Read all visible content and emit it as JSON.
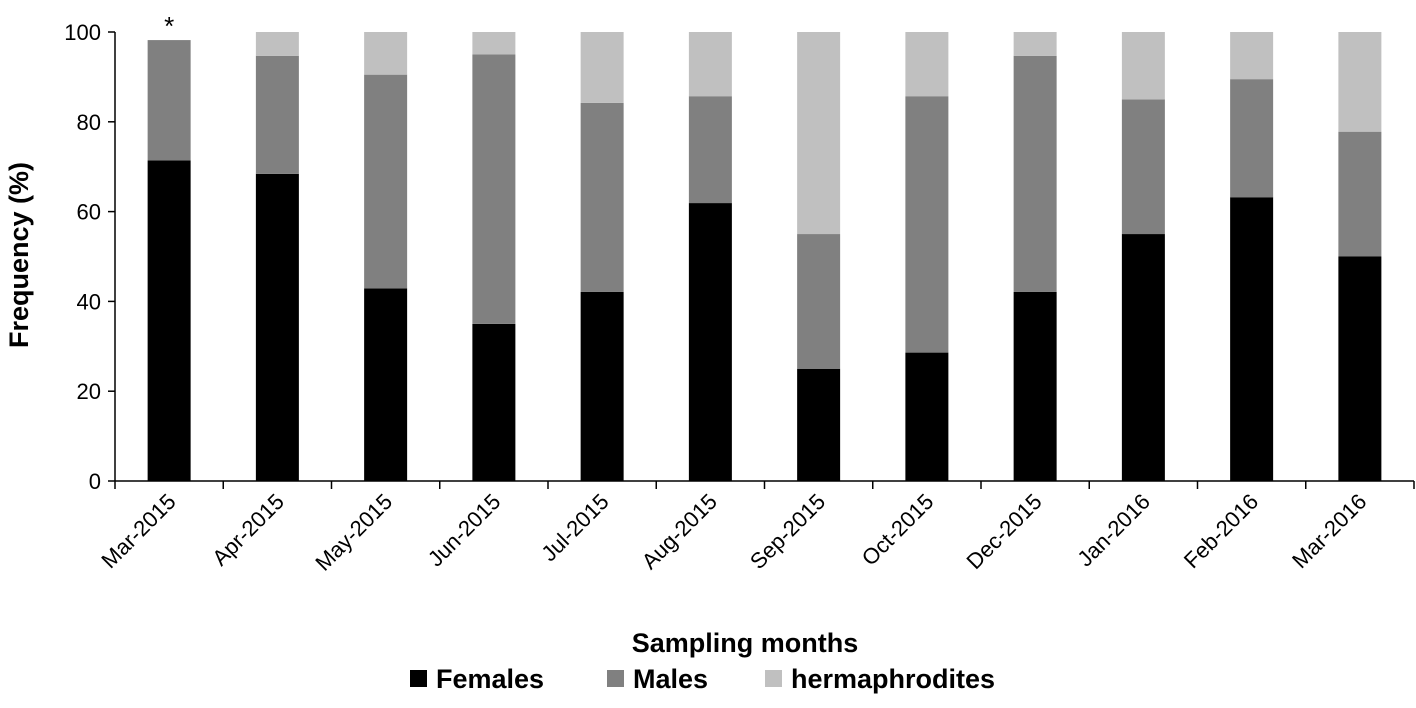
{
  "chart_data": {
    "type": "bar",
    "stacked": true,
    "title": "",
    "xlabel": "Sampling months",
    "ylabel": "Frequency (%)",
    "ylim": [
      0,
      100
    ],
    "yticks": [
      0,
      20,
      40,
      60,
      80,
      100
    ],
    "grid": false,
    "legend_position": "bottom",
    "categories": [
      "Mar-2015",
      "Apr-2015",
      "May-2015",
      "Jun-2015",
      "Jul-2015",
      "Aug-2015",
      "Sep-2015",
      "Oct-2015",
      "Dec-2015",
      "Jan-2016",
      "Feb-2016",
      "Mar-2016"
    ],
    "series": [
      {
        "name": "Females",
        "color": "#000000",
        "values": [
          71.4,
          68.4,
          42.9,
          35.0,
          42.1,
          61.9,
          25.0,
          28.6,
          42.1,
          55.0,
          63.2,
          50.0
        ]
      },
      {
        "name": "Males",
        "color": "#808080",
        "values": [
          26.8,
          26.3,
          47.6,
          60.0,
          42.1,
          23.8,
          30.0,
          57.1,
          52.6,
          30.0,
          26.3,
          27.8
        ]
      },
      {
        "name": "hermaphrodites",
        "color": "#c0c0c0",
        "values": [
          0.0,
          5.3,
          9.5,
          5.0,
          15.8,
          14.3,
          45.0,
          14.3,
          5.3,
          15.0,
          10.5,
          22.2
        ]
      }
    ],
    "annotations": [
      {
        "text": "*",
        "category": "Mar-2015"
      }
    ]
  }
}
